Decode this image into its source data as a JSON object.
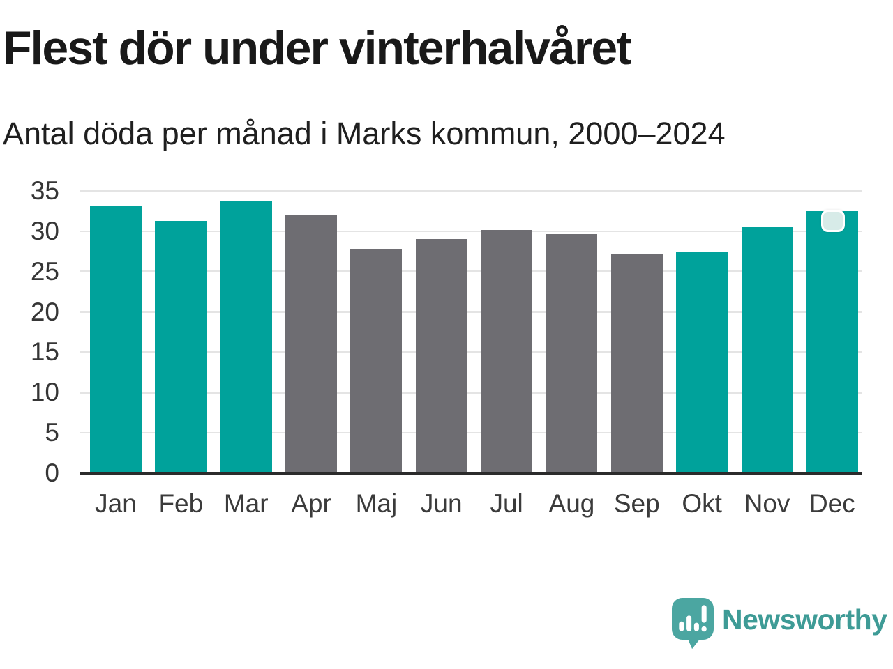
{
  "header": {
    "title": "Flest dör under vinterhalvåret",
    "subtitle": "Antal döda per månad i Marks kommun, 2000–2024"
  },
  "chart_data": {
    "type": "bar",
    "title": "Flest dör under vinterhalvåret",
    "subtitle": "Antal döda per månad i Marks kommun, 2000–2024",
    "categories": [
      "Jan",
      "Feb",
      "Mar",
      "Apr",
      "Maj",
      "Jun",
      "Jul",
      "Aug",
      "Sep",
      "Okt",
      "Nov",
      "Dec"
    ],
    "values": [
      33.2,
      31.3,
      33.8,
      32.0,
      27.8,
      29.0,
      30.2,
      29.6,
      27.2,
      27.5,
      30.5,
      32.5
    ],
    "bar_color_keys": [
      "highlight",
      "highlight",
      "highlight",
      "neutral",
      "neutral",
      "neutral",
      "neutral",
      "neutral",
      "neutral",
      "highlight",
      "highlight",
      "highlight"
    ],
    "palette": {
      "highlight": "#00A29B",
      "neutral": "#6E6D72"
    },
    "yticks": [
      0,
      5,
      10,
      15,
      20,
      25,
      30,
      35
    ],
    "ylim": [
      0,
      35
    ],
    "xlabel": "",
    "ylabel": "",
    "grid": "horizontal",
    "legend": "none",
    "gridline_color": "#e4e4e4",
    "axis_color": "#2b2b2b"
  },
  "marker": {
    "attached_to": "Dec",
    "fill": "#D7EBE8",
    "border": "#FFFFFF"
  },
  "branding": {
    "logo_text": "Newsworthy",
    "logo_text_color": "#3E9B96",
    "icon": "newsworthy-speech-bubble-chart-icon",
    "icon_color": "#4BA6A1",
    "icon_glyph_color": "#FFFFFF"
  }
}
